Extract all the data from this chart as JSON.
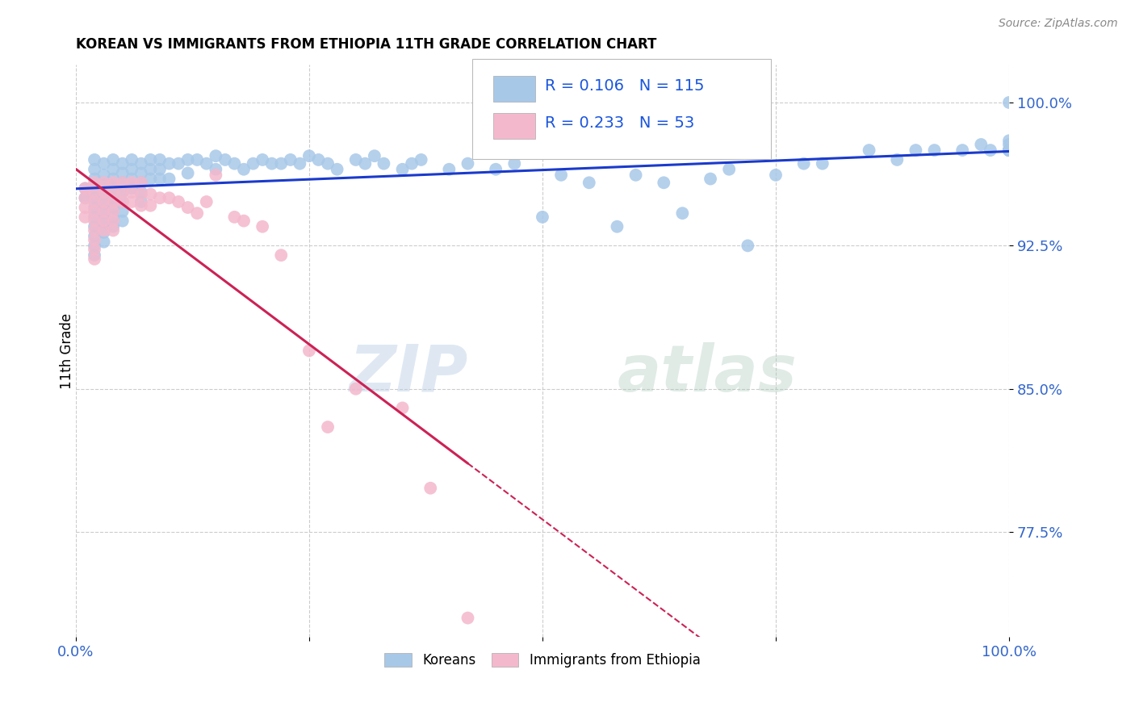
{
  "title": "KOREAN VS IMMIGRANTS FROM ETHIOPIA 11TH GRADE CORRELATION CHART",
  "source": "Source: ZipAtlas.com",
  "ylabel": "11th Grade",
  "watermark_zip": "ZIP",
  "watermark_atlas": "atlas",
  "xlim": [
    0.0,
    1.0
  ],
  "ylim": [
    0.72,
    1.02
  ],
  "yticks_display": [
    0.775,
    0.85,
    0.925,
    1.0
  ],
  "ytick_labels_display": [
    "77.5%",
    "85.0%",
    "92.5%",
    "100.0%"
  ],
  "xticks": [
    0.0,
    0.25,
    0.5,
    0.75,
    1.0
  ],
  "xtick_labels": [
    "0.0%",
    "",
    "",
    "",
    "100.0%"
  ],
  "korean_color": "#a8c8e8",
  "ethiopia_color": "#f4b8cc",
  "korean_line_color": "#1a3acc",
  "ethiopia_line_color": "#cc2255",
  "korea_R": 0.106,
  "korea_N": 115,
  "ethiopia_R": 0.233,
  "ethiopia_N": 53,
  "legend_color": "#1a55dd",
  "background_color": "#ffffff",
  "grid_color": "#cccccc",
  "axis_label_color": "#3366cc",
  "korean_x": [
    0.01,
    0.01,
    0.02,
    0.02,
    0.02,
    0.02,
    0.02,
    0.02,
    0.02,
    0.02,
    0.02,
    0.02,
    0.02,
    0.03,
    0.03,
    0.03,
    0.03,
    0.03,
    0.03,
    0.03,
    0.03,
    0.03,
    0.04,
    0.04,
    0.04,
    0.04,
    0.04,
    0.04,
    0.04,
    0.04,
    0.05,
    0.05,
    0.05,
    0.05,
    0.05,
    0.05,
    0.05,
    0.06,
    0.06,
    0.06,
    0.06,
    0.07,
    0.07,
    0.07,
    0.07,
    0.07,
    0.08,
    0.08,
    0.08,
    0.09,
    0.09,
    0.09,
    0.1,
    0.1,
    0.11,
    0.12,
    0.12,
    0.13,
    0.14,
    0.15,
    0.15,
    0.16,
    0.17,
    0.18,
    0.19,
    0.2,
    0.21,
    0.22,
    0.23,
    0.24,
    0.25,
    0.26,
    0.27,
    0.28,
    0.3,
    0.31,
    0.32,
    0.33,
    0.35,
    0.36,
    0.37,
    0.4,
    0.42,
    0.45,
    0.47,
    0.5,
    0.52,
    0.55,
    0.58,
    0.6,
    0.63,
    0.65,
    0.68,
    0.7,
    0.72,
    0.75,
    0.78,
    0.8,
    0.85,
    0.88,
    0.9,
    0.92,
    0.95,
    0.97,
    0.98,
    1.0,
    1.0,
    1.0,
    1.0,
    1.0,
    1.0,
    1.0,
    1.0,
    1.0,
    1.0
  ],
  "korean_y": [
    0.955,
    0.95,
    0.97,
    0.965,
    0.96,
    0.955,
    0.95,
    0.945,
    0.94,
    0.935,
    0.93,
    0.925,
    0.92,
    0.968,
    0.962,
    0.957,
    0.952,
    0.947,
    0.942,
    0.937,
    0.932,
    0.927,
    0.97,
    0.965,
    0.96,
    0.955,
    0.95,
    0.945,
    0.94,
    0.935,
    0.968,
    0.963,
    0.958,
    0.953,
    0.948,
    0.943,
    0.938,
    0.97,
    0.965,
    0.96,
    0.955,
    0.968,
    0.963,
    0.958,
    0.953,
    0.948,
    0.97,
    0.965,
    0.96,
    0.97,
    0.965,
    0.96,
    0.968,
    0.96,
    0.968,
    0.97,
    0.963,
    0.97,
    0.968,
    0.972,
    0.965,
    0.97,
    0.968,
    0.965,
    0.968,
    0.97,
    0.968,
    0.968,
    0.97,
    0.968,
    0.972,
    0.97,
    0.968,
    0.965,
    0.97,
    0.968,
    0.972,
    0.968,
    0.965,
    0.968,
    0.97,
    0.965,
    0.968,
    0.965,
    0.968,
    0.94,
    0.962,
    0.958,
    0.935,
    0.962,
    0.958,
    0.942,
    0.96,
    0.965,
    0.925,
    0.962,
    0.968,
    0.968,
    0.975,
    0.97,
    0.975,
    0.975,
    0.975,
    0.978,
    0.975,
    0.975,
    0.975,
    0.975,
    0.975,
    0.975,
    0.975,
    0.975,
    0.978,
    0.98,
    1.0
  ],
  "ethiopia_x": [
    0.01,
    0.01,
    0.01,
    0.01,
    0.02,
    0.02,
    0.02,
    0.02,
    0.02,
    0.02,
    0.02,
    0.02,
    0.02,
    0.03,
    0.03,
    0.03,
    0.03,
    0.03,
    0.03,
    0.04,
    0.04,
    0.04,
    0.04,
    0.04,
    0.04,
    0.05,
    0.05,
    0.05,
    0.06,
    0.06,
    0.06,
    0.07,
    0.07,
    0.07,
    0.08,
    0.08,
    0.09,
    0.1,
    0.11,
    0.12,
    0.13,
    0.14,
    0.15,
    0.17,
    0.18,
    0.2,
    0.22,
    0.25,
    0.27,
    0.3,
    0.35,
    0.38,
    0.42
  ],
  "ethiopia_y": [
    0.955,
    0.95,
    0.945,
    0.94,
    0.958,
    0.953,
    0.948,
    0.943,
    0.938,
    0.933,
    0.928,
    0.923,
    0.918,
    0.958,
    0.953,
    0.948,
    0.943,
    0.938,
    0.933,
    0.958,
    0.953,
    0.948,
    0.943,
    0.938,
    0.933,
    0.958,
    0.953,
    0.948,
    0.958,
    0.953,
    0.948,
    0.958,
    0.952,
    0.946,
    0.952,
    0.946,
    0.95,
    0.95,
    0.948,
    0.945,
    0.942,
    0.948,
    0.962,
    0.94,
    0.938,
    0.935,
    0.92,
    0.87,
    0.83,
    0.85,
    0.84,
    0.798,
    0.73
  ],
  "ethiopia_line_x_solid_end": 0.42,
  "ethiopia_line_x_dash_end": 0.7
}
